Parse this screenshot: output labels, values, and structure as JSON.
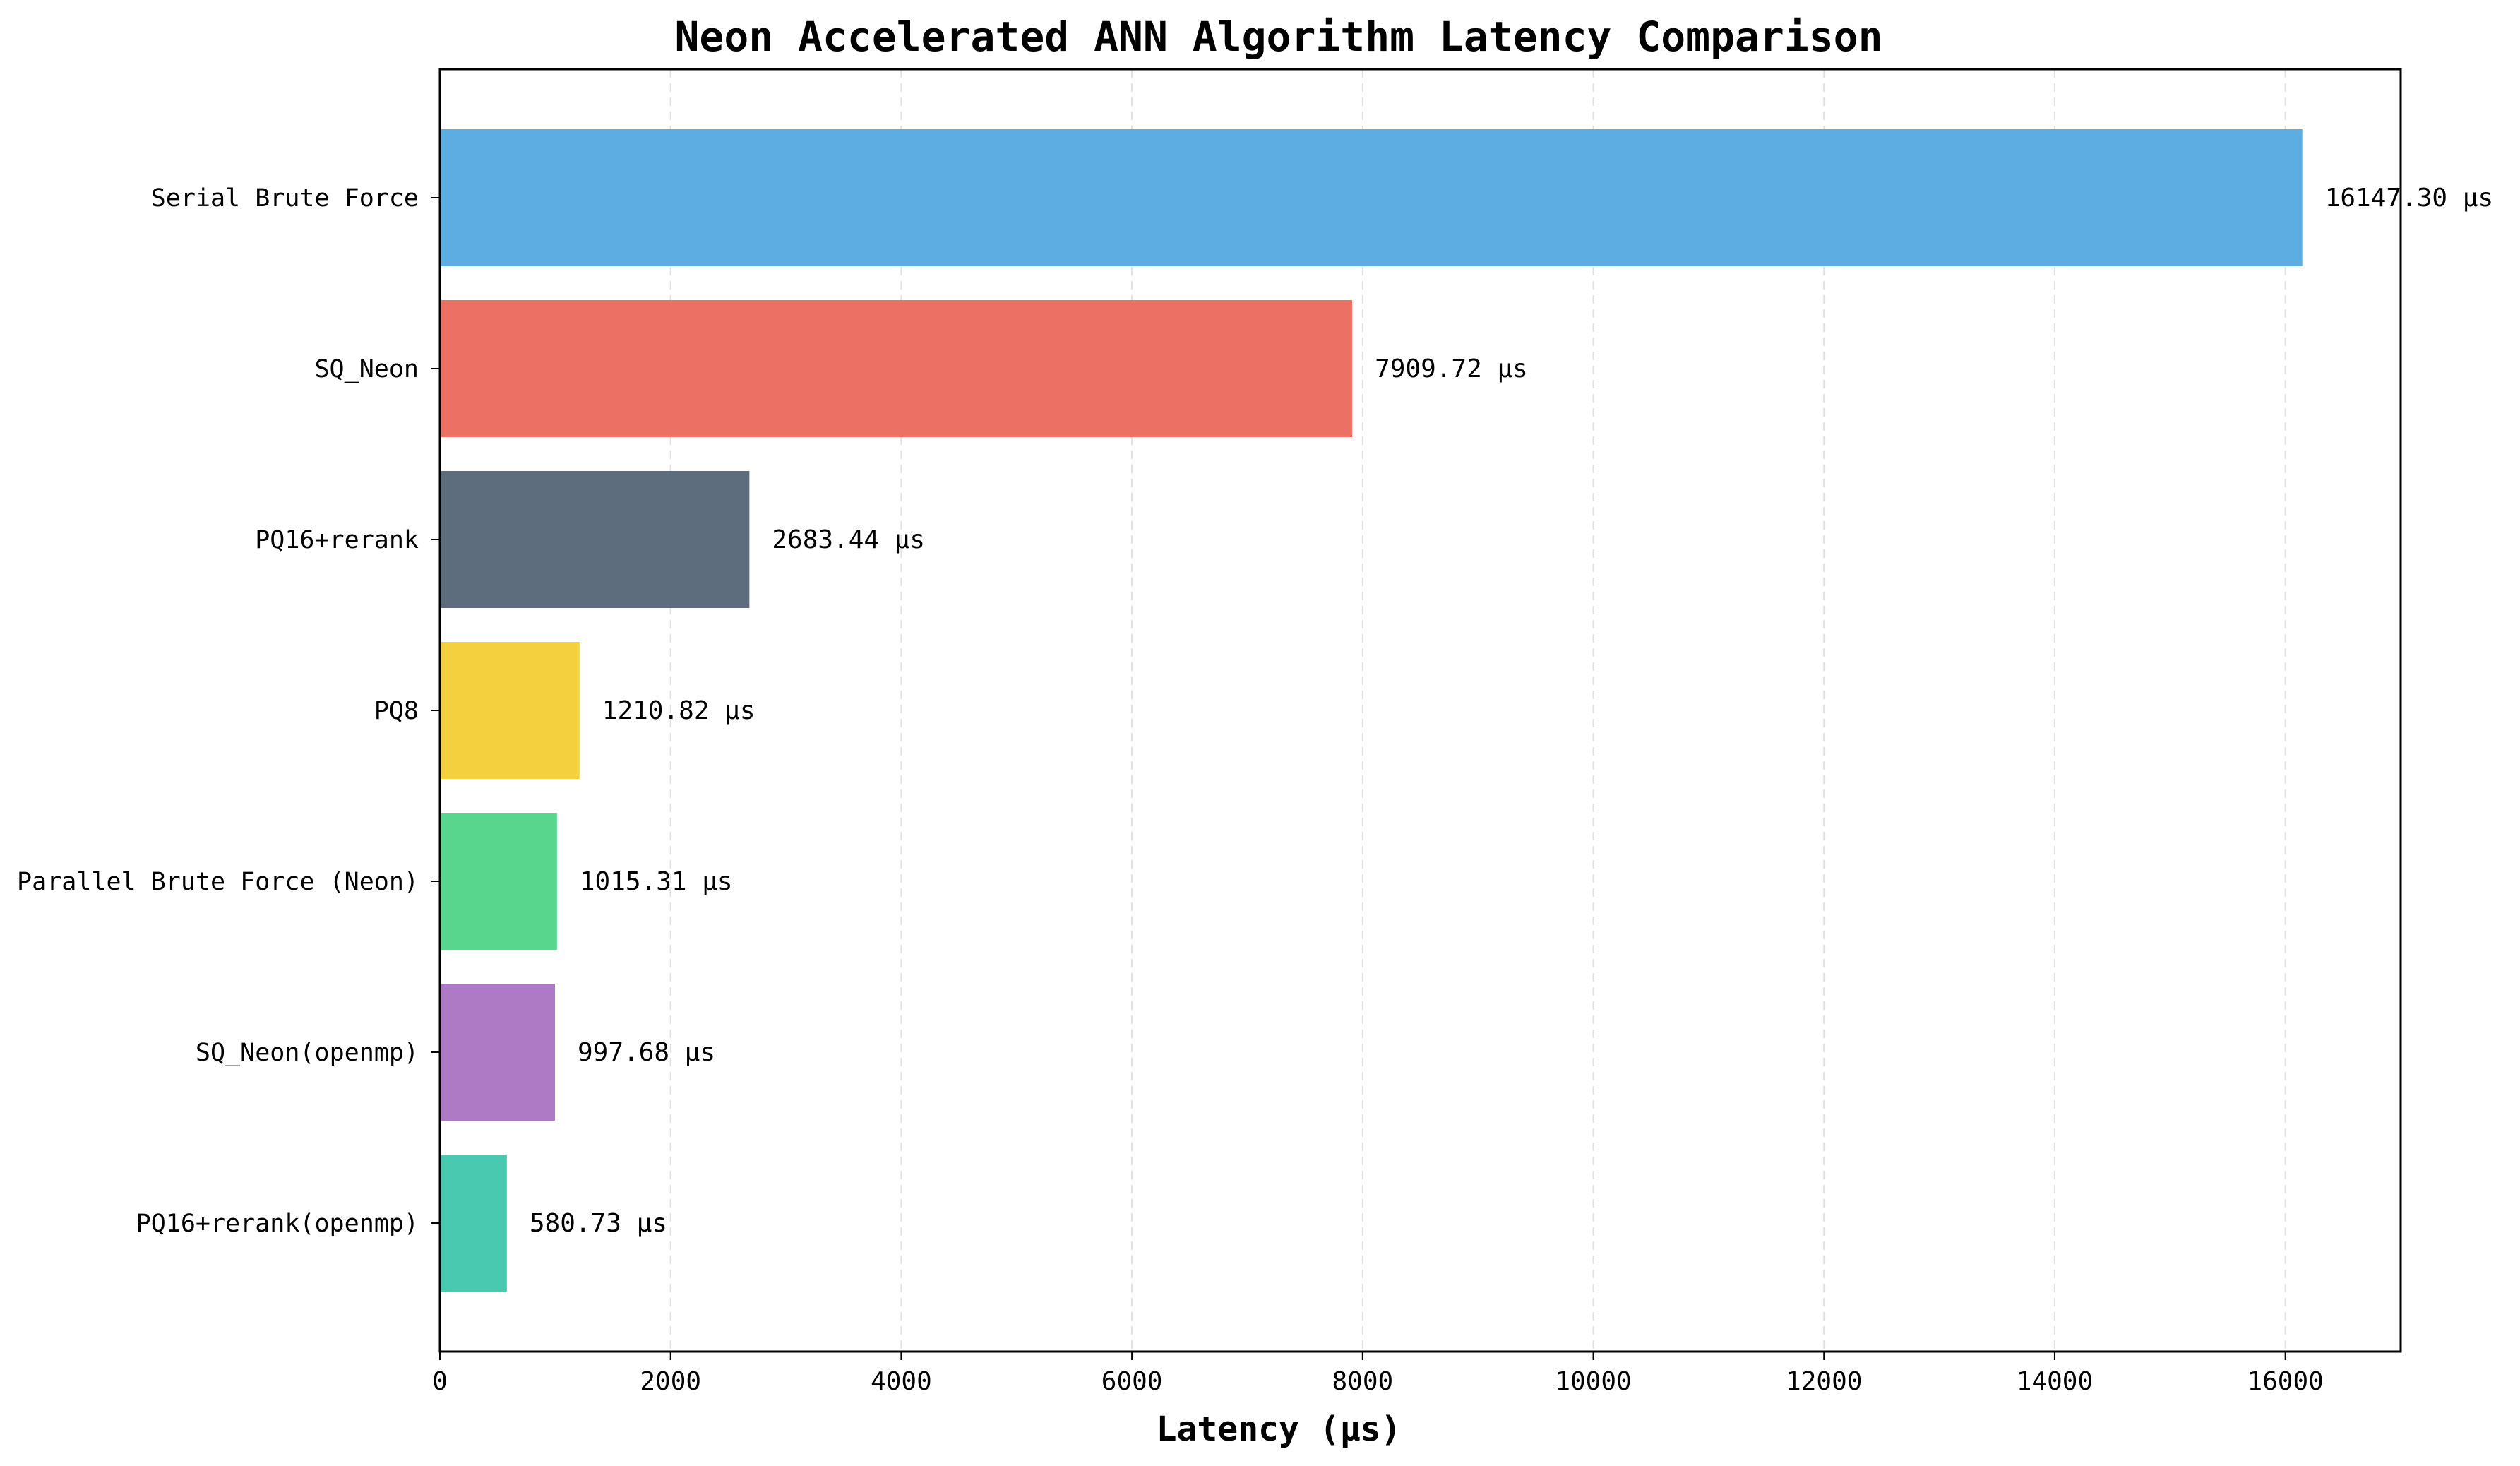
{
  "chart_data": {
    "type": "bar",
    "orientation": "horizontal",
    "title": "Neon Accelerated ANN Algorithm Latency Comparison",
    "xlabel": "Latency (µs)",
    "ylabel": "",
    "xlim": [
      0,
      17000
    ],
    "xticks": [
      0,
      2000,
      4000,
      6000,
      8000,
      10000,
      12000,
      14000,
      16000
    ],
    "grid": "x-dashed",
    "legend": "none",
    "value_suffix": " µs",
    "categories": [
      "Serial Brute Force",
      "SQ_Neon",
      "PQ16+rerank",
      "PQ8",
      "Parallel Brute Force (Neon)",
      "SQ_Neon(openmp)",
      "PQ16+rerank(openmp)"
    ],
    "values": [
      16147.3,
      7909.72,
      2683.44,
      1210.82,
      1015.31,
      997.68,
      580.73
    ],
    "value_labels": [
      "16147.30 µs",
      "7909.72 µs",
      "2683.44 µs",
      "1210.82 µs",
      "1015.31 µs",
      "997.68 µs",
      "580.73 µs"
    ],
    "colors": [
      "#5DADE2",
      "#EC7063",
      "#5D6D7E",
      "#F4D03F",
      "#58D68D",
      "#AF7AC5",
      "#48C9B0"
    ]
  }
}
